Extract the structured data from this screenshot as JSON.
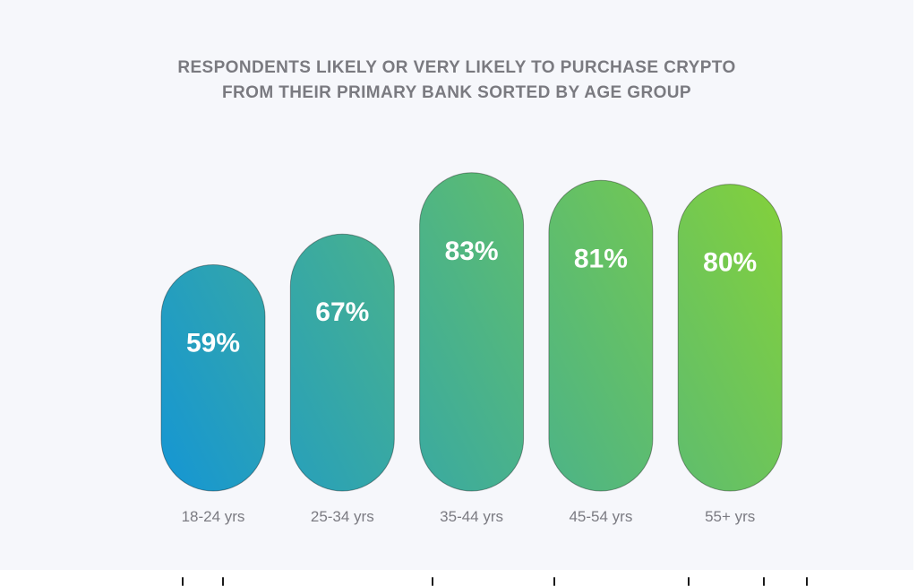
{
  "chart_data": {
    "type": "bar",
    "title": "RESPONDENTS LIKELY OR VERY LIKELY TO PURCHASE CRYPTO FROM THEIR PRIMARY BANK SORTED BY AGE GROUP",
    "title_lines": [
      "RESPONDENTS LIKELY OR VERY LIKELY TO PURCHASE CRYPTO",
      "FROM THEIR PRIMARY BANK SORTED BY AGE GROUP"
    ],
    "categories": [
      "18-24 yrs",
      "25-34 yrs",
      "35-44 yrs",
      "45-54 yrs",
      "55+ yrs"
    ],
    "values": [
      59,
      67,
      83,
      81,
      80
    ],
    "value_labels": [
      "59%",
      "67%",
      "83%",
      "81%",
      "80%"
    ],
    "unit": "%",
    "grid": false,
    "legend": "none",
    "colors": {
      "gradient_start": "#1596d4",
      "gradient_end": "#84d13a",
      "title": "#7a7a80",
      "category_text": "#7b7b82",
      "background": "#f6f7fb"
    }
  }
}
